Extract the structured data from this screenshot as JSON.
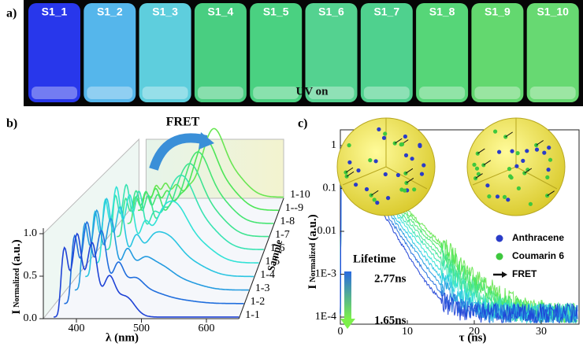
{
  "panel_a": {
    "label": "a)",
    "vials": [
      "S1_1",
      "S1_2",
      "S1_3",
      "S1_4",
      "S1_5",
      "S1_6",
      "S1_7",
      "S1_8",
      "S1_9",
      "S1_10"
    ],
    "caption": "UV on"
  },
  "panel_b": {
    "label": "b)",
    "annotation": "FRET",
    "y_axis": {
      "label": "I",
      "subscript": "Normalized",
      "unit": "(a.u.)",
      "ticks": [
        "0.0",
        "0.5",
        "1.0"
      ]
    },
    "x_axis": {
      "label": "λ (nm)",
      "ticks": [
        "400",
        "500",
        "600"
      ]
    },
    "depth_axis": {
      "label": "Sample",
      "ticks": [
        "1-1",
        "1-2",
        "1-3",
        "1-4",
        "1-5",
        "1-6",
        "1-7",
        "1-8",
        "1--9",
        "1-10"
      ]
    }
  },
  "panel_c": {
    "label": "c)",
    "y_axis": {
      "label": "I",
      "subscript": "Normalized",
      "unit": "(a.u.)",
      "ticks": [
        "1",
        "0.1",
        "0.01",
        "1E-3",
        "1E-4"
      ]
    },
    "x_axis": {
      "label": "τ (ns)",
      "ticks": [
        "0",
        "10",
        "20",
        "30"
      ]
    },
    "legend": [
      "Anthracene",
      "Coumarin 6",
      "FRET"
    ],
    "lifetime": {
      "title": "Lifetime",
      "max": "2.77ns",
      "min": "1.65ns"
    }
  }
}
